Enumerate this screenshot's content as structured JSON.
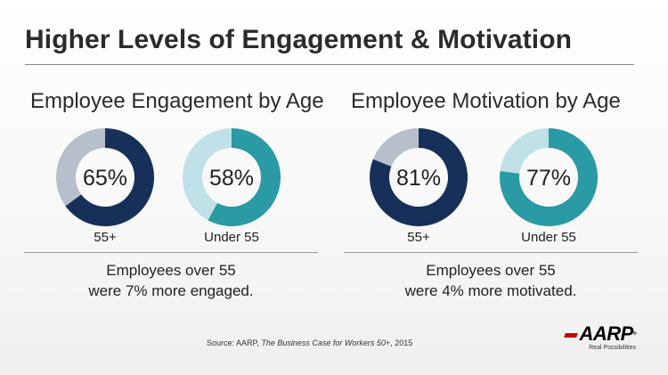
{
  "slide": {
    "title": "Higher Levels of Engagement & Motivation",
    "source_prefix": "Source: AARP, ",
    "source_title": "The Business Case for Workers 50+",
    "source_suffix": ", 2015"
  },
  "logo": {
    "word": "AARP",
    "mark": "®",
    "tagline": "Real Possibilities"
  },
  "colors": {
    "dark_navy": "#17305a",
    "gray_blue": "#b7bfcc",
    "teal": "#2a9aa5",
    "light_teal": "#bfe1e7"
  },
  "chart_data": [
    {
      "type": "pie",
      "title": "Employee Engagement by Age",
      "categories": [
        "55+",
        "Under 55"
      ],
      "values": [
        65,
        58
      ],
      "value_labels": [
        "65%",
        "58%"
      ],
      "note": [
        "Employees over 55",
        "were 7% more engaged."
      ]
    },
    {
      "type": "pie",
      "title": "Employee Motivation by Age",
      "categories": [
        "55+",
        "Under 55"
      ],
      "values": [
        81,
        77
      ],
      "value_labels": [
        "81%",
        "77%"
      ],
      "note": [
        "Employees over 55",
        "were 4% more motivated."
      ]
    }
  ]
}
